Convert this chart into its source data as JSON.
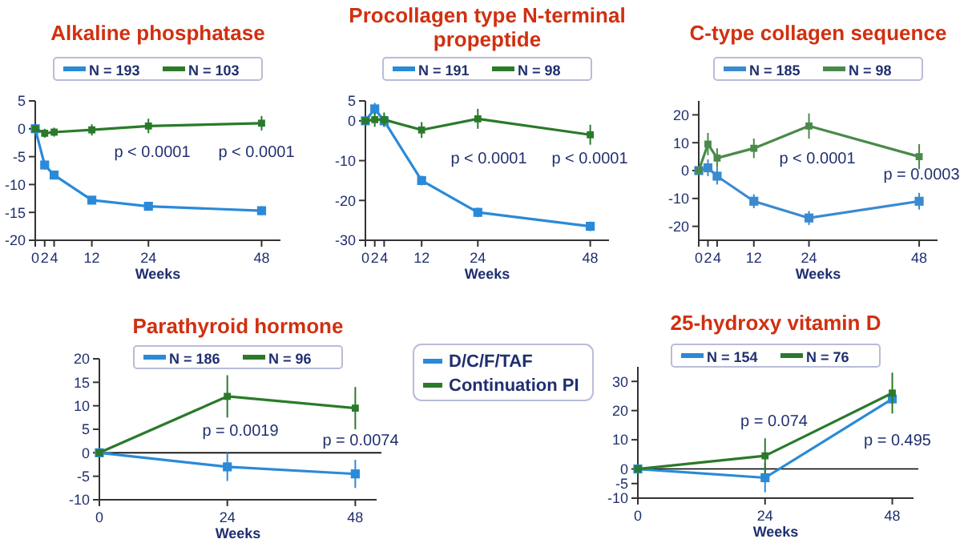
{
  "chart_data": [
    {
      "type": "line",
      "title": "Alkaline phosphatase",
      "xlabel": "Weeks",
      "x": [
        0,
        2,
        4,
        12,
        24,
        48
      ],
      "xlim": [
        0,
        52
      ],
      "xticks": [
        0,
        2,
        4,
        12,
        24,
        48
      ],
      "ylim": [
        -20,
        5
      ],
      "yticks": [
        -20,
        -15,
        -10,
        -5,
        0,
        5
      ],
      "legend": "top",
      "marker": "square",
      "series": [
        {
          "name": "N = 193",
          "color": "#2a8ad8",
          "values": [
            0,
            -6.5,
            -8.3,
            -12.8,
            -13.9,
            -14.7
          ],
          "errors": [
            0.5,
            0.8,
            0.8,
            0.6,
            0.8,
            0.8
          ]
        },
        {
          "name": "N = 103",
          "color": "#2a7a2a",
          "values": [
            0,
            -0.8,
            -0.6,
            -0.2,
            0.5,
            1.0
          ],
          "errors": [
            0.5,
            0.8,
            0.8,
            1.0,
            1.3,
            1.3
          ]
        }
      ],
      "annotations": [
        "p < 0.0001",
        "p < 0.0001"
      ]
    },
    {
      "type": "line",
      "title": "Procollagen type N-terminal propeptide",
      "xlabel": "Weeks",
      "x": [
        0,
        2,
        4,
        12,
        24,
        48
      ],
      "xlim": [
        0,
        52
      ],
      "xticks": [
        0,
        2,
        4,
        12,
        24,
        48
      ],
      "ylim": [
        -30,
        5
      ],
      "yticks": [
        -30,
        -20,
        -10,
        0,
        5
      ],
      "legend": "top",
      "marker": "square",
      "series": [
        {
          "name": "N = 191",
          "color": "#2a8ad8",
          "values": [
            0,
            3,
            0,
            -15,
            -23,
            -26.5
          ],
          "errors": [
            0.5,
            1.5,
            1.5,
            1.2,
            1.2,
            1.2
          ]
        },
        {
          "name": "N = 98",
          "color": "#2a7a2a",
          "values": [
            0,
            0.3,
            0.3,
            -2.3,
            0.5,
            -3.5
          ],
          "errors": [
            0.5,
            1.8,
            1.8,
            2,
            2.5,
            2.5
          ]
        }
      ],
      "annotations": [
        "p < 0.0001",
        "p < 0.0001"
      ]
    },
    {
      "type": "line",
      "title": "C-type collagen sequence",
      "xlabel": "Weeks",
      "x": [
        0,
        2,
        4,
        12,
        24,
        48
      ],
      "xlim": [
        0,
        52
      ],
      "xticks": [
        0,
        2,
        4,
        12,
        24,
        48
      ],
      "ylim": [
        -25,
        25
      ],
      "yticks": [
        -20,
        -10,
        0,
        10,
        20
      ],
      "legend": "top",
      "marker": "square",
      "series": [
        {
          "name": "N = 185",
          "color": "#3a8ad0",
          "values": [
            0,
            1,
            -2,
            -11,
            -17,
            -11
          ],
          "errors": [
            0.5,
            3,
            3,
            2.5,
            2.5,
            3
          ]
        },
        {
          "name": "N = 98",
          "color": "#4a8a4a",
          "values": [
            0,
            9.5,
            4.5,
            8,
            16,
            5
          ],
          "errors": [
            0.5,
            4,
            3.5,
            3.5,
            4.5,
            4.5
          ]
        }
      ],
      "annotations": [
        "p < 0.0001",
        "p = 0.0003"
      ]
    },
    {
      "type": "line",
      "title": "Parathyroid hormone",
      "xlabel": "Weeks",
      "x": [
        0,
        24,
        48
      ],
      "xlim": [
        0,
        52
      ],
      "xticks": [
        0,
        24,
        48
      ],
      "ylim": [
        -10,
        20
      ],
      "yticks": [
        -10,
        -5,
        0,
        5,
        10,
        15,
        20
      ],
      "legend": "top",
      "marker": "square",
      "ref_lines": [
        {
          "axis": "y",
          "value": 0,
          "color": "#000000"
        }
      ],
      "series": [
        {
          "name": "N = 186",
          "color": "#2a8ad8",
          "values": [
            0,
            -3,
            -4.5
          ],
          "errors": [
            0.5,
            3,
            3
          ]
        },
        {
          "name": "N = 96",
          "color": "#2a7a2a",
          "values": [
            0,
            12,
            9.5
          ],
          "errors": [
            0.5,
            4.5,
            4.5
          ]
        }
      ],
      "annotations": [
        "p = 0.0019",
        "p = 0.0074"
      ]
    },
    {
      "type": "other",
      "series": [
        {
          "name": "D/C/F/TAF",
          "color": "#2a8ad8"
        },
        {
          "name": "Continuation PI",
          "color": "#2a7a2a"
        }
      ]
    },
    {
      "type": "line",
      "title": "25-hydroxy vitamin D",
      "xlabel": "Weeks",
      "x": [
        0,
        24,
        48
      ],
      "xlim": [
        0,
        52
      ],
      "xticks": [
        0,
        24,
        48
      ],
      "ylim": [
        -10,
        35
      ],
      "yticks": [
        -10,
        -5,
        0,
        10,
        20,
        30
      ],
      "legend": "top",
      "marker": "square",
      "ref_lines": [
        {
          "axis": "y",
          "value": 0,
          "color": "#000000"
        }
      ],
      "series": [
        {
          "name": "N = 154",
          "color": "#2a8ad8",
          "values": [
            0,
            -3,
            24
          ],
          "errors": [
            0.5,
            5,
            null
          ]
        },
        {
          "name": "N = 76",
          "color": "#2a7a2a",
          "values": [
            0,
            4.5,
            26
          ],
          "errors": [
            0.5,
            6,
            7
          ]
        }
      ],
      "annotations": [
        "p = 0.074",
        "p = 0.495"
      ]
    }
  ]
}
